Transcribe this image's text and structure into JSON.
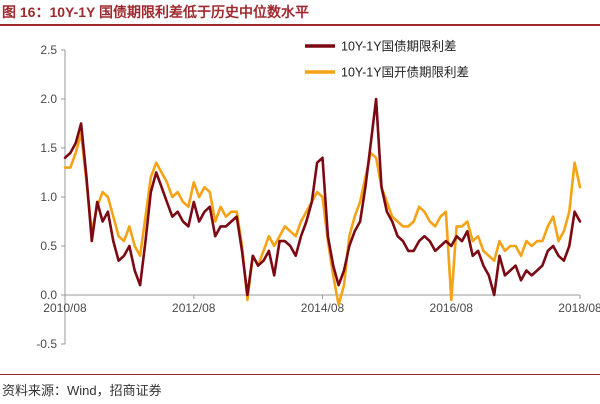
{
  "header": {
    "title": "图 16：10Y-1Y 国债期限利差低于历史中位数水平"
  },
  "footer": {
    "source": "资料来源：Wind，招商证券"
  },
  "colors": {
    "title": "#9E2A2F",
    "series_1": "#7B0A14",
    "series_2": "#F5A316",
    "axis": "#9a9a9a"
  },
  "chart_data": {
    "type": "line",
    "ylim": [
      -0.5,
      2.5
    ],
    "yticks": [
      -0.5,
      0.0,
      0.5,
      1.0,
      1.5,
      2.0,
      2.5
    ],
    "ytick_labels": [
      "-0.5",
      "0.0",
      "0.5",
      "1.0",
      "1.5",
      "2.0",
      "2.5"
    ],
    "xlim": [
      "2010-08",
      "2018-08"
    ],
    "xticks": [
      "2010/08",
      "2012/08",
      "2014/08",
      "2016/08",
      "2018/08"
    ],
    "legend_position": "top-right",
    "series": [
      {
        "name": "10Y-1Y国债期限利差",
        "color": "#7B0A14",
        "x": [
          "2010-08",
          "2010-09",
          "2010-10",
          "2010-11",
          "2010-12",
          "2011-01",
          "2011-02",
          "2011-03",
          "2011-04",
          "2011-05",
          "2011-06",
          "2011-07",
          "2011-08",
          "2011-09",
          "2011-10",
          "2011-11",
          "2011-12",
          "2012-01",
          "2012-02",
          "2012-03",
          "2012-04",
          "2012-05",
          "2012-06",
          "2012-07",
          "2012-08",
          "2012-09",
          "2012-10",
          "2012-11",
          "2012-12",
          "2013-01",
          "2013-02",
          "2013-03",
          "2013-04",
          "2013-05",
          "2013-06",
          "2013-07",
          "2013-08",
          "2013-09",
          "2013-10",
          "2013-11",
          "2013-12",
          "2014-01",
          "2014-02",
          "2014-03",
          "2014-04",
          "2014-05",
          "2014-06",
          "2014-07",
          "2014-08",
          "2014-09",
          "2014-10",
          "2014-11",
          "2014-12",
          "2015-01",
          "2015-02",
          "2015-03",
          "2015-04",
          "2015-05",
          "2015-06",
          "2015-07",
          "2015-08",
          "2015-09",
          "2015-10",
          "2015-11",
          "2015-12",
          "2016-01",
          "2016-02",
          "2016-03",
          "2016-04",
          "2016-05",
          "2016-06",
          "2016-07",
          "2016-08",
          "2016-09",
          "2016-10",
          "2016-11",
          "2016-12",
          "2017-01",
          "2017-02",
          "2017-03",
          "2017-04",
          "2017-05",
          "2017-06",
          "2017-07",
          "2017-08",
          "2017-09",
          "2017-10",
          "2017-11",
          "2017-12",
          "2018-01",
          "2018-02",
          "2018-03",
          "2018-04",
          "2018-05",
          "2018-06",
          "2018-07",
          "2018-08"
        ],
        "values": [
          1.4,
          1.45,
          1.55,
          1.75,
          1.2,
          0.55,
          0.95,
          0.75,
          0.85,
          0.55,
          0.35,
          0.4,
          0.5,
          0.25,
          0.1,
          0.55,
          1.05,
          1.25,
          1.1,
          0.95,
          0.8,
          0.85,
          0.75,
          0.7,
          0.95,
          0.75,
          0.85,
          0.9,
          0.6,
          0.7,
          0.7,
          0.75,
          0.8,
          0.45,
          0.0,
          0.4,
          0.3,
          0.35,
          0.45,
          0.2,
          0.55,
          0.55,
          0.5,
          0.4,
          0.6,
          0.75,
          0.95,
          1.35,
          1.4,
          0.6,
          0.3,
          0.1,
          0.25,
          0.5,
          0.65,
          0.75,
          1.1,
          1.55,
          2.0,
          1.1,
          0.85,
          0.75,
          0.6,
          0.55,
          0.45,
          0.45,
          0.55,
          0.6,
          0.55,
          0.45,
          0.5,
          0.55,
          0.5,
          0.6,
          0.55,
          0.65,
          0.4,
          0.45,
          0.3,
          0.2,
          0.0,
          0.4,
          0.2,
          0.25,
          0.3,
          0.15,
          0.25,
          0.2,
          0.25,
          0.3,
          0.45,
          0.5,
          0.4,
          0.35,
          0.5,
          0.85,
          0.75
        ]
      },
      {
        "name": "10Y-1Y国开债期限利差",
        "color": "#F5A316",
        "x": [
          "2010-08",
          "2010-09",
          "2010-10",
          "2010-11",
          "2010-12",
          "2011-01",
          "2011-02",
          "2011-03",
          "2011-04",
          "2011-05",
          "2011-06",
          "2011-07",
          "2011-08",
          "2011-09",
          "2011-10",
          "2011-11",
          "2011-12",
          "2012-01",
          "2012-02",
          "2012-03",
          "2012-04",
          "2012-05",
          "2012-06",
          "2012-07",
          "2012-08",
          "2012-09",
          "2012-10",
          "2012-11",
          "2012-12",
          "2013-01",
          "2013-02",
          "2013-03",
          "2013-04",
          "2013-05",
          "2013-06",
          "2013-07",
          "2013-08",
          "2013-09",
          "2013-10",
          "2013-11",
          "2013-12",
          "2014-01",
          "2014-02",
          "2014-03",
          "2014-04",
          "2014-05",
          "2014-06",
          "2014-07",
          "2014-08",
          "2014-09",
          "2014-10",
          "2014-11",
          "2014-12",
          "2015-01",
          "2015-02",
          "2015-03",
          "2015-04",
          "2015-05",
          "2015-06",
          "2015-07",
          "2015-08",
          "2015-09",
          "2015-10",
          "2015-11",
          "2015-12",
          "2016-01",
          "2016-02",
          "2016-03",
          "2016-04",
          "2016-05",
          "2016-06",
          "2016-07",
          "2016-08",
          "2016-09",
          "2016-10",
          "2016-11",
          "2016-12",
          "2017-01",
          "2017-02",
          "2017-03",
          "2017-04",
          "2017-05",
          "2017-06",
          "2017-07",
          "2017-08",
          "2017-09",
          "2017-10",
          "2017-11",
          "2017-12",
          "2018-01",
          "2018-02",
          "2018-03",
          "2018-04",
          "2018-05",
          "2018-06",
          "2018-07",
          "2018-08"
        ],
        "values": [
          1.3,
          1.3,
          1.45,
          1.65,
          1.15,
          0.65,
          0.9,
          1.05,
          1.0,
          0.8,
          0.6,
          0.55,
          0.7,
          0.5,
          0.4,
          0.8,
          1.2,
          1.35,
          1.25,
          1.15,
          1.0,
          1.05,
          0.95,
          0.9,
          1.15,
          1.0,
          1.1,
          1.05,
          0.75,
          0.9,
          0.8,
          0.85,
          0.85,
          0.5,
          -0.05,
          0.4,
          0.3,
          0.45,
          0.6,
          0.5,
          0.6,
          0.7,
          0.65,
          0.6,
          0.75,
          0.85,
          0.95,
          1.05,
          1.0,
          0.55,
          0.2,
          -0.1,
          0.1,
          0.6,
          0.8,
          0.95,
          1.2,
          1.45,
          1.4,
          1.1,
          0.95,
          0.8,
          0.75,
          0.7,
          0.7,
          0.75,
          0.9,
          0.85,
          0.75,
          0.7,
          0.8,
          0.85,
          -0.05,
          0.7,
          0.7,
          0.75,
          0.55,
          0.6,
          0.45,
          0.4,
          0.35,
          0.55,
          0.45,
          0.5,
          0.5,
          0.4,
          0.55,
          0.5,
          0.55,
          0.55,
          0.7,
          0.8,
          0.55,
          0.65,
          0.85,
          1.35,
          1.1
        ]
      }
    ]
  }
}
